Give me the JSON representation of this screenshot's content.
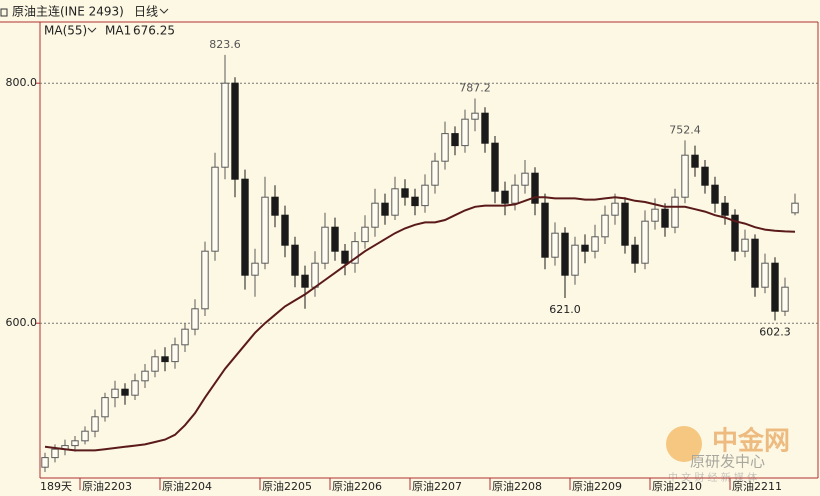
{
  "header": {
    "symbol": "原油主连(INE 2493)",
    "period": "日线",
    "indicator": "MA(55)",
    "bar_count": "189天"
  },
  "watermark": {
    "brand": "中金网",
    "slogan": "中 文 财 经 新 媒 体",
    "account": "原研发中心"
  },
  "chart_data": {
    "type": "candlestick",
    "categories": [
      null,
      null,
      null,
      null,
      "原油2203",
      null,
      null,
      null,
      null,
      null,
      null,
      null,
      "原油2204",
      null,
      null,
      null,
      null,
      null,
      null,
      null,
      null,
      null,
      "原油2205",
      null,
      null,
      null,
      null,
      null,
      null,
      "原油2206",
      null,
      null,
      null,
      null,
      null,
      null,
      null,
      "原油2207",
      null,
      null,
      null,
      null,
      null,
      null,
      null,
      "原油2208",
      null,
      null,
      null,
      null,
      null,
      null,
      null,
      "原油2209",
      null,
      null,
      null,
      null,
      null,
      null,
      null,
      "原油2210",
      null,
      null,
      null,
      null,
      null,
      null,
      null,
      "原油2211",
      null,
      null,
      null,
      null,
      null,
      null
    ],
    "open": [
      480,
      488,
      495,
      498,
      502,
      510,
      522,
      538,
      545,
      540,
      552,
      560,
      572,
      568,
      582,
      595,
      612,
      660,
      730,
      800,
      720,
      640,
      650,
      705,
      690,
      665,
      640,
      630,
      650,
      680,
      660,
      650,
      668,
      680,
      700,
      690,
      712,
      705,
      698,
      715,
      735,
      758,
      748,
      770,
      775,
      750,
      710,
      700,
      715,
      725,
      700,
      655,
      675,
      640,
      665,
      660,
      672,
      690,
      700,
      665,
      650,
      685,
      695,
      680,
      705,
      740,
      730,
      715,
      700,
      690,
      660,
      670,
      630,
      650,
      610,
      692
    ],
    "high": [
      492,
      499,
      503,
      506,
      514,
      528,
      542,
      552,
      550,
      558,
      566,
      578,
      580,
      588,
      600,
      620,
      668,
      742,
      823.6,
      805,
      728,
      662,
      722,
      715,
      698,
      672,
      648,
      660,
      692,
      688,
      666,
      676,
      690,
      712,
      708,
      722,
      720,
      712,
      724,
      742,
      768,
      764,
      778,
      787.2,
      780,
      756,
      718,
      724,
      736,
      730,
      708,
      684,
      680,
      672,
      674,
      682,
      698,
      708,
      705,
      672,
      694,
      704,
      700,
      712,
      752.4,
      748,
      736,
      722,
      706,
      695,
      678,
      674,
      658,
      655,
      638,
      708
    ],
    "low": [
      476,
      484,
      490,
      493,
      499,
      505,
      518,
      530,
      532,
      536,
      546,
      555,
      560,
      562,
      576,
      590,
      606,
      652,
      720,
      705,
      628,
      622,
      645,
      680,
      655,
      630,
      612,
      622,
      645,
      652,
      640,
      642,
      662,
      672,
      682,
      686,
      698,
      690,
      692,
      708,
      728,
      740,
      742,
      760,
      742,
      700,
      690,
      694,
      708,
      690,
      645,
      648,
      621,
      632,
      650,
      654,
      666,
      682,
      658,
      642,
      645,
      678,
      672,
      675,
      700,
      722,
      708,
      692,
      682,
      652,
      655,
      622,
      625,
      602.3,
      606,
      690
    ],
    "close": [
      488,
      495,
      498,
      502,
      510,
      522,
      538,
      545,
      540,
      552,
      560,
      572,
      568,
      582,
      595,
      612,
      660,
      730,
      800,
      720,
      640,
      650,
      705,
      690,
      665,
      640,
      630,
      650,
      680,
      660,
      650,
      668,
      680,
      700,
      690,
      712,
      705,
      698,
      715,
      735,
      758,
      748,
      770,
      775,
      750,
      710,
      700,
      715,
      725,
      700,
      655,
      675,
      640,
      665,
      660,
      672,
      690,
      700,
      665,
      650,
      685,
      695,
      680,
      705,
      740,
      730,
      715,
      700,
      690,
      660,
      670,
      630,
      650,
      610,
      630,
      700
    ],
    "high_labels": [
      null,
      null,
      null,
      null,
      null,
      null,
      null,
      null,
      null,
      null,
      null,
      null,
      null,
      null,
      null,
      null,
      null,
      null,
      "823.6",
      null,
      null,
      null,
      null,
      null,
      null,
      null,
      null,
      null,
      null,
      null,
      null,
      null,
      null,
      null,
      null,
      null,
      null,
      null,
      null,
      null,
      null,
      null,
      null,
      "787.2",
      null,
      null,
      null,
      null,
      null,
      null,
      null,
      null,
      null,
      null,
      null,
      null,
      null,
      null,
      null,
      null,
      null,
      null,
      null,
      null,
      "752.4",
      null,
      null,
      null,
      null,
      null,
      null,
      null,
      null,
      null,
      null,
      null
    ],
    "low_labels": [
      null,
      null,
      null,
      null,
      null,
      null,
      null,
      null,
      null,
      null,
      null,
      null,
      null,
      null,
      null,
      null,
      null,
      null,
      null,
      null,
      null,
      null,
      null,
      null,
      null,
      null,
      null,
      null,
      null,
      null,
      null,
      null,
      null,
      null,
      null,
      null,
      null,
      null,
      null,
      null,
      null,
      null,
      null,
      null,
      null,
      null,
      null,
      null,
      null,
      null,
      null,
      null,
      "621.0",
      null,
      null,
      null,
      null,
      null,
      null,
      null,
      null,
      null,
      null,
      null,
      null,
      null,
      null,
      null,
      null,
      null,
      null,
      null,
      null,
      "602.3",
      null,
      null
    ],
    "up_color": "#fffdf2",
    "down_color": "#1a1a1a",
    "outline": "#5a5a5a",
    "series": [
      {
        "name": "MA1",
        "color": "#5a1a1a",
        "values": [
          497,
          496,
          495,
          494,
          494,
          494,
          495,
          496,
          497,
          498,
          499,
          501,
          503,
          507,
          515,
          525,
          538,
          550,
          562,
          572,
          582,
          592,
          600,
          607,
          614,
          619,
          624,
          630,
          636,
          642,
          648,
          654,
          660,
          665,
          670,
          675,
          679,
          682,
          684,
          684,
          686,
          690,
          694,
          697,
          698,
          698,
          698,
          699,
          702,
          705,
          705,
          704,
          704,
          704,
          703,
          703,
          704,
          705,
          704,
          702,
          701,
          699,
          697,
          697,
          697,
          695,
          693,
          690,
          688,
          685,
          683,
          680,
          678,
          677,
          676.5,
          676.25
        ]
      }
    ],
    "ylim": [
      471,
      851
    ],
    "yticks": [
      {
        "value": 600,
        "label": "600.0"
      },
      {
        "value": 800,
        "label": "800.0"
      }
    ],
    "grid": true
  }
}
